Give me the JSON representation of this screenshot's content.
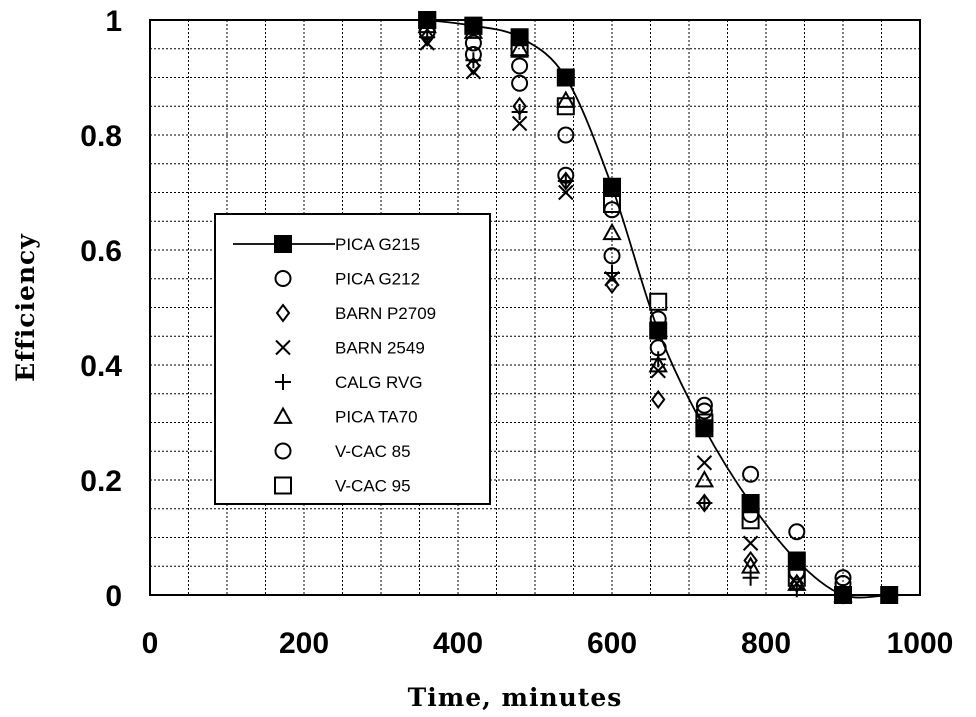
{
  "chart_data": {
    "type": "scatter",
    "title": "",
    "xlabel": "Time, minutes",
    "ylabel": "Efficiency",
    "xlim": [
      0,
      1000
    ],
    "ylim": [
      0,
      1
    ],
    "x_ticks": [
      0,
      200,
      400,
      600,
      800,
      1000
    ],
    "y_ticks": [
      0,
      0.2,
      0.4,
      0.6,
      0.8,
      1
    ],
    "x_tick_labels": [
      "0",
      "200",
      "400",
      "600",
      "800",
      "1000"
    ],
    "y_tick_labels": [
      "0",
      "0.2",
      "0.4",
      "0.6",
      "0.8",
      "1"
    ],
    "grid": true,
    "legend_position": "left-center",
    "series": [
      {
        "name": "PICA G215",
        "marker": "filled-square",
        "line": true,
        "x": [
          360,
          420,
          480,
          540,
          600,
          660,
          720,
          780,
          840,
          900,
          960
        ],
        "y": [
          1.0,
          0.99,
          0.97,
          0.9,
          0.71,
          0.46,
          0.29,
          0.16,
          0.06,
          0.0,
          0.0
        ]
      },
      {
        "name": "PICA G212",
        "marker": "circle",
        "line": false,
        "x": [
          360,
          420,
          480,
          540,
          600,
          660,
          720,
          780,
          840,
          900
        ],
        "y": [
          0.98,
          0.94,
          0.89,
          0.8,
          0.59,
          0.43,
          0.32,
          0.21,
          0.11,
          0.03
        ]
      },
      {
        "name": "BARN P2709",
        "marker": "diamond",
        "line": false,
        "x": [
          360,
          420,
          480,
          540,
          600,
          660,
          720,
          780,
          840,
          900
        ],
        "y": [
          0.97,
          0.92,
          0.85,
          0.72,
          0.54,
          0.34,
          0.16,
          0.06,
          0.02,
          0.0
        ]
      },
      {
        "name": "BARN 2549",
        "marker": "x",
        "line": false,
        "x": [
          360,
          420,
          480,
          540,
          600,
          660,
          720,
          780,
          840,
          900
        ],
        "y": [
          0.96,
          0.91,
          0.82,
          0.7,
          0.55,
          0.39,
          0.23,
          0.09,
          0.02,
          0.0
        ]
      },
      {
        "name": "CALG RVG",
        "marker": "plus",
        "line": false,
        "x": [
          360,
          420,
          480,
          540,
          600,
          660,
          720,
          780,
          840,
          900
        ],
        "y": [
          0.97,
          0.93,
          0.84,
          0.72,
          0.56,
          0.41,
          0.16,
          0.03,
          0.01,
          0.0
        ]
      },
      {
        "name": "PICA TA70",
        "marker": "triangle",
        "line": false,
        "x": [
          360,
          420,
          480,
          540,
          600,
          660,
          720,
          780,
          840,
          900
        ],
        "y": [
          0.99,
          0.98,
          0.95,
          0.86,
          0.63,
          0.4,
          0.2,
          0.05,
          0.02,
          0.0
        ]
      },
      {
        "name": "V-CAC 85",
        "marker": "circle",
        "line": false,
        "x": [
          360,
          420,
          480,
          540,
          600,
          660,
          720,
          780,
          840,
          900
        ],
        "y": [
          0.98,
          0.96,
          0.92,
          0.73,
          0.67,
          0.48,
          0.33,
          0.14,
          0.04,
          0.02
        ]
      },
      {
        "name": "V-CAC 95",
        "marker": "open-square",
        "line": false,
        "x": [
          360,
          420,
          480,
          540,
          600,
          660,
          720,
          780,
          840,
          900
        ],
        "y": [
          1.0,
          0.99,
          0.95,
          0.85,
          0.68,
          0.51,
          0.3,
          0.13,
          0.03,
          0.0
        ]
      }
    ]
  }
}
